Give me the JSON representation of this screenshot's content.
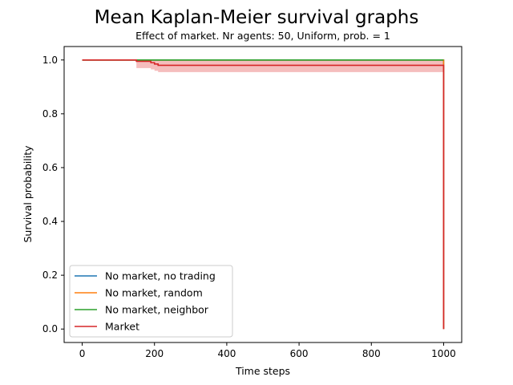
{
  "chart_data": {
    "type": "line",
    "title": "Mean Kaplan-Meier survival graphs",
    "subtitle": "Effect of market. Nr agents: 50, Uniform, prob. = 1",
    "xlabel": "Time steps",
    "ylabel": "Survival probability",
    "xlim": [
      -50,
      1050
    ],
    "ylim": [
      -0.05,
      1.05
    ],
    "xticks": [
      0,
      200,
      400,
      600,
      800,
      1000
    ],
    "yticks": [
      0.0,
      0.2,
      0.4,
      0.6,
      0.8,
      1.0
    ],
    "xtick_labels": [
      "0",
      "200",
      "400",
      "600",
      "800",
      "1000"
    ],
    "ytick_labels": [
      "0.0",
      "0.2",
      "0.4",
      "0.6",
      "0.8",
      "1.0"
    ],
    "grid": false,
    "legend_position": "lower-left",
    "series": [
      {
        "name": "No market, no trading",
        "color": "#1f77b4",
        "step": "post",
        "x": [
          0,
          1000,
          1000
        ],
        "y": [
          1.0,
          1.0,
          0.0
        ]
      },
      {
        "name": "No market, random",
        "color": "#ff7f0e",
        "step": "post",
        "x": [
          0,
          1000,
          1000
        ],
        "y": [
          1.0,
          1.0,
          0.0
        ]
      },
      {
        "name": "No market, neighbor",
        "color": "#2ca02c",
        "step": "post",
        "x": [
          0,
          1000
        ],
        "y": [
          1.0,
          1.0
        ]
      },
      {
        "name": "Market",
        "color": "#d62728",
        "step": "post",
        "x": [
          0,
          150,
          190,
          200,
          210,
          1000,
          1000
        ],
        "y": [
          1.0,
          0.995,
          0.99,
          0.985,
          0.98,
          0.98,
          0.0
        ],
        "ci_lower": [
          1.0,
          0.97,
          0.965,
          0.96,
          0.955,
          0.955,
          0.955
        ],
        "ci_upper": [
          1.0,
          1.0,
          1.0,
          1.0,
          1.0,
          1.0,
          1.0
        ],
        "ci_color": "#f4b6b6"
      }
    ]
  }
}
